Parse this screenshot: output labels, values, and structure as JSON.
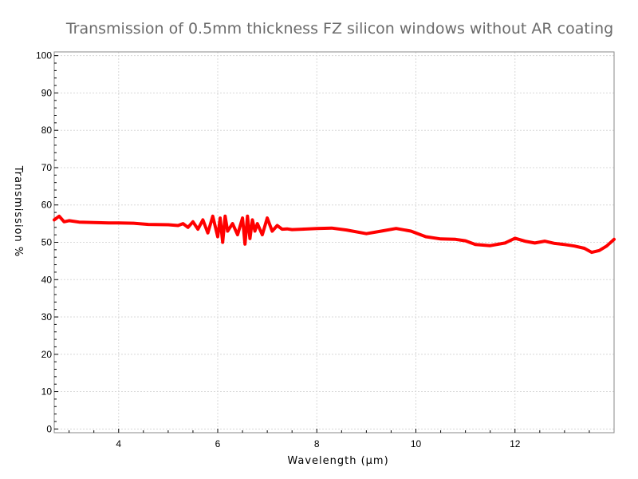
{
  "chart_data": {
    "type": "line",
    "title": "Transmission of 0.5mm thickness FZ silicon windows without AR coating",
    "xlabel": "Wavelength (μm)",
    "ylabel": "Transmission %",
    "xlim": [
      2.7,
      14.0
    ],
    "ylim": [
      -1,
      101
    ],
    "x_ticks": [
      4,
      6,
      8,
      10,
      12
    ],
    "y_ticks": [
      0,
      10,
      20,
      30,
      40,
      50,
      60,
      70,
      80,
      90,
      100
    ],
    "grid": true,
    "legend": "none",
    "series": [
      {
        "color": "#ff0000",
        "x": [
          2.7,
          2.8,
          2.9,
          3.0,
          3.2,
          3.5,
          3.8,
          4.0,
          4.3,
          4.6,
          5.0,
          5.2,
          5.3,
          5.4,
          5.5,
          5.6,
          5.7,
          5.8,
          5.9,
          6.0,
          6.05,
          6.1,
          6.15,
          6.2,
          6.3,
          6.4,
          6.5,
          6.55,
          6.6,
          6.65,
          6.7,
          6.75,
          6.8,
          6.9,
          7.0,
          7.1,
          7.2,
          7.3,
          7.4,
          7.5,
          7.7,
          8.0,
          8.3,
          8.6,
          9.0,
          9.3,
          9.6,
          9.9,
          10.2,
          10.5,
          10.8,
          11.0,
          11.2,
          11.5,
          11.8,
          12.0,
          12.2,
          12.4,
          12.6,
          12.8,
          13.0,
          13.2,
          13.4,
          13.55,
          13.7,
          13.85,
          14.0
        ],
        "y": [
          56.0,
          57.0,
          55.5,
          55.8,
          55.4,
          55.3,
          55.2,
          55.2,
          55.1,
          54.8,
          54.7,
          54.5,
          55.0,
          54.0,
          55.5,
          53.5,
          56.0,
          52.5,
          57.0,
          51.5,
          56.5,
          50.0,
          57.0,
          53.0,
          55.0,
          52.0,
          56.5,
          49.5,
          57.0,
          51.0,
          56.0,
          53.0,
          55.0,
          52.0,
          56.5,
          53.0,
          54.5,
          53.5,
          53.6,
          53.4,
          53.5,
          53.7,
          53.8,
          53.3,
          52.3,
          53.0,
          53.7,
          53.0,
          51.5,
          50.9,
          50.8,
          50.4,
          49.4,
          49.1,
          49.8,
          51.1,
          50.3,
          49.8,
          50.3,
          49.7,
          49.4,
          49.0,
          48.4,
          47.3,
          47.8,
          49.0,
          50.8
        ]
      }
    ]
  }
}
